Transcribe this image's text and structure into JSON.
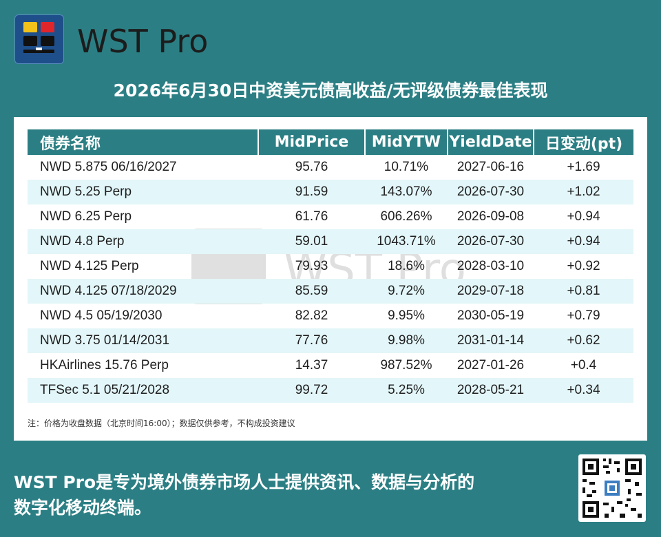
{
  "brand": {
    "name": "WST Pro"
  },
  "title": "2026年6月30日中资美元债高收益/无评级债券最佳表现",
  "table": {
    "headers": [
      "债券名称",
      "MidPrice",
      "MidYTW",
      "YieldDate",
      "日变动(pt)"
    ],
    "rows": [
      [
        "NWD 5.875 06/16/2027",
        "95.76",
        "10.71%",
        "2027-06-16",
        "+1.69"
      ],
      [
        "NWD 5.25 Perp",
        "91.59",
        "143.07%",
        "2026-07-30",
        "+1.02"
      ],
      [
        "NWD 6.25 Perp",
        "61.76",
        "606.26%",
        "2026-09-08",
        "+0.94"
      ],
      [
        "NWD 4.8 Perp",
        "59.01",
        "1043.71%",
        "2026-07-30",
        "+0.94"
      ],
      [
        "NWD 4.125 Perp",
        "79.93",
        "18.6%",
        "2028-03-10",
        "+0.92"
      ],
      [
        "NWD 4.125 07/18/2029",
        "85.59",
        "9.72%",
        "2029-07-18",
        "+0.81"
      ],
      [
        "NWD 4.5 05/19/2030",
        "82.82",
        "9.95%",
        "2030-05-19",
        "+0.79"
      ],
      [
        "NWD 3.75 01/14/2031",
        "77.76",
        "9.98%",
        "2031-01-14",
        "+0.62"
      ],
      [
        "HKAirlines 15.76 Perp",
        "14.37",
        "987.52%",
        "2027-01-26",
        "+0.4"
      ],
      [
        "TFSec 5.1 05/21/2028",
        "99.72",
        "5.25%",
        "2028-05-21",
        "+0.34"
      ]
    ]
  },
  "note": "注：价格为收盘数据（北京时间16:00）；数据仅供参考，不构成投资建议",
  "watermark": "WST Pro",
  "footer": {
    "line1": "WST Pro是专为境外债券市场人士提供资讯、数据与分析的",
    "line2": "数字化移动终端。"
  },
  "colors": {
    "background": "#2b7f84",
    "header_bg": "#2b7f84",
    "stripe": "#e3f6f9",
    "logo_bg": "#1f4f8a",
    "logo_yellow": "#f2c21b",
    "logo_red": "#e0262b"
  },
  "icons": {
    "logo": "wst-logo-icon",
    "qr": "qr-code"
  }
}
